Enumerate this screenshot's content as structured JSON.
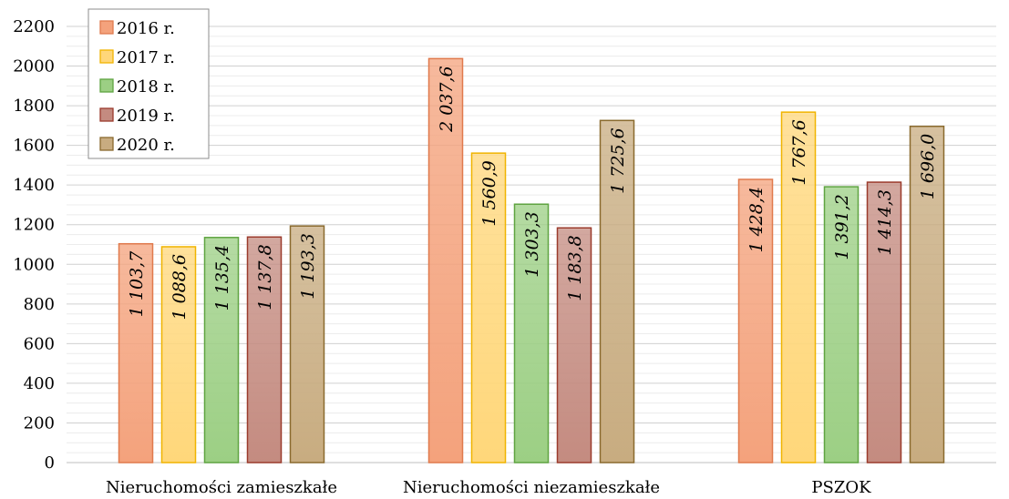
{
  "chart_data": {
    "type": "bar",
    "categories": [
      "Nieruchomości zamieszkałe",
      "Nieruchomości niezamieszkałe",
      "PSZOK"
    ],
    "series": [
      {
        "name": "2016 r.",
        "values": [
          1103.7,
          2037.6,
          1428.4
        ],
        "labels": [
          "1 103,7",
          "2 037,6",
          "1 428,4"
        ],
        "color": "#f4a27c",
        "stroke": "#e07a4d"
      },
      {
        "name": "2017 r.",
        "values": [
          1088.6,
          1560.9,
          1767.6
        ],
        "labels": [
          "1 088,6",
          "1 560,9",
          "1 767,6"
        ],
        "color": "#ffd77a",
        "stroke": "#f0b400"
      },
      {
        "name": "2018 r.",
        "values": [
          1135.4,
          1303.3,
          1391.2
        ],
        "labels": [
          "1 135,4",
          "1 303,3",
          "1 391,2"
        ],
        "color": "#9ccf84",
        "stroke": "#5fa441"
      },
      {
        "name": "2019 r.",
        "values": [
          1137.8,
          1183.8,
          1414.3
        ],
        "labels": [
          "1 137,8",
          "1 183,8",
          "1 414,3"
        ],
        "color": "#c48b80",
        "stroke": "#9b3b2c"
      },
      {
        "name": "2020 r.",
        "values": [
          1193.3,
          1725.6,
          1696.0
        ],
        "labels": [
          "1 193,3",
          "1 725,6",
          "1 696,0"
        ],
        "color": "#c8ac80",
        "stroke": "#8a6a2e"
      }
    ],
    "yticks": [
      "0",
      "200",
      "400",
      "600",
      "800",
      "1000",
      "1200",
      "1400",
      "1600",
      "1800",
      "2000",
      "2200"
    ],
    "ylim": [
      0,
      2200
    ],
    "grid": true,
    "legend_position": "top-left"
  }
}
